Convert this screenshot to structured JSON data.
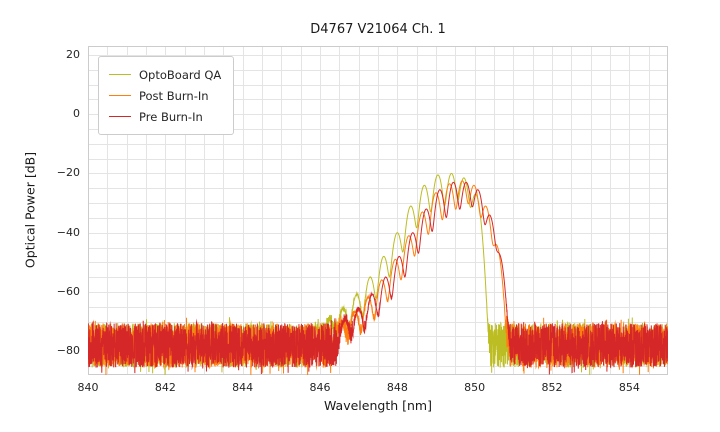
{
  "chart_data": {
    "type": "line",
    "title": "D4767 V21064 Ch. 1",
    "xlabel": "Wavelength [nm]",
    "ylabel": "Optical Power [dB]",
    "xlim": [
      840,
      855
    ],
    "ylim": [
      -88,
      23
    ],
    "x_tick_values": [
      840,
      842,
      844,
      846,
      848,
      850,
      852,
      854
    ],
    "x_tick_labels": [
      "840",
      "842",
      "844",
      "846",
      "848",
      "850",
      "852",
      "854"
    ],
    "y_tick_values": [
      20,
      0,
      -20,
      -40,
      -60,
      -80
    ],
    "y_tick_labels": [
      "20",
      "0",
      "−20",
      "−40",
      "−60",
      "−80"
    ],
    "grid": {
      "x_step": 0.5,
      "y_step": 5,
      "color": "#e4e4e4",
      "border_color": "#cccccc"
    },
    "mode_sigma_nm": 0.07,
    "noise_floor_dB": {
      "top": -70.5,
      "spread": 15
    },
    "legend_location": "upper left",
    "series": [
      {
        "name": "OptoBoard QA",
        "color": "#bcbd22",
        "seed": 11,
        "modes": [
          [
            845.9,
            -73
          ],
          [
            846.25,
            -70
          ],
          [
            846.6,
            -66
          ],
          [
            846.95,
            -61
          ],
          [
            847.3,
            -55
          ],
          [
            847.65,
            -48
          ],
          [
            848.0,
            -40
          ],
          [
            848.35,
            -31
          ],
          [
            848.7,
            -24
          ],
          [
            849.05,
            -20.5
          ],
          [
            849.4,
            -20
          ],
          [
            849.72,
            -21.5
          ],
          [
            850.02,
            -27
          ]
        ]
      },
      {
        "name": "Post Burn-In",
        "color": "#ff7f0e",
        "seed": 22,
        "modes": [
          [
            846.55,
            -71
          ],
          [
            846.9,
            -67
          ],
          [
            847.25,
            -62
          ],
          [
            847.6,
            -56
          ],
          [
            847.95,
            -49
          ],
          [
            848.3,
            -41
          ],
          [
            848.65,
            -33
          ],
          [
            849.0,
            -26.5
          ],
          [
            849.35,
            -23.5
          ],
          [
            849.68,
            -22.5
          ],
          [
            849.98,
            -24
          ],
          [
            850.28,
            -31
          ],
          [
            850.55,
            -44
          ]
        ]
      },
      {
        "name": "Pre Burn-In",
        "color": "#d62728",
        "seed": 33,
        "modes": [
          [
            846.65,
            -70
          ],
          [
            847.0,
            -66
          ],
          [
            847.35,
            -61
          ],
          [
            847.7,
            -55
          ],
          [
            848.05,
            -48
          ],
          [
            848.4,
            -40
          ],
          [
            848.75,
            -32
          ],
          [
            849.1,
            -25.5
          ],
          [
            849.45,
            -23
          ],
          [
            849.78,
            -23
          ],
          [
            850.08,
            -25.5
          ],
          [
            850.38,
            -34
          ],
          [
            850.62,
            -47
          ]
        ]
      }
    ]
  }
}
